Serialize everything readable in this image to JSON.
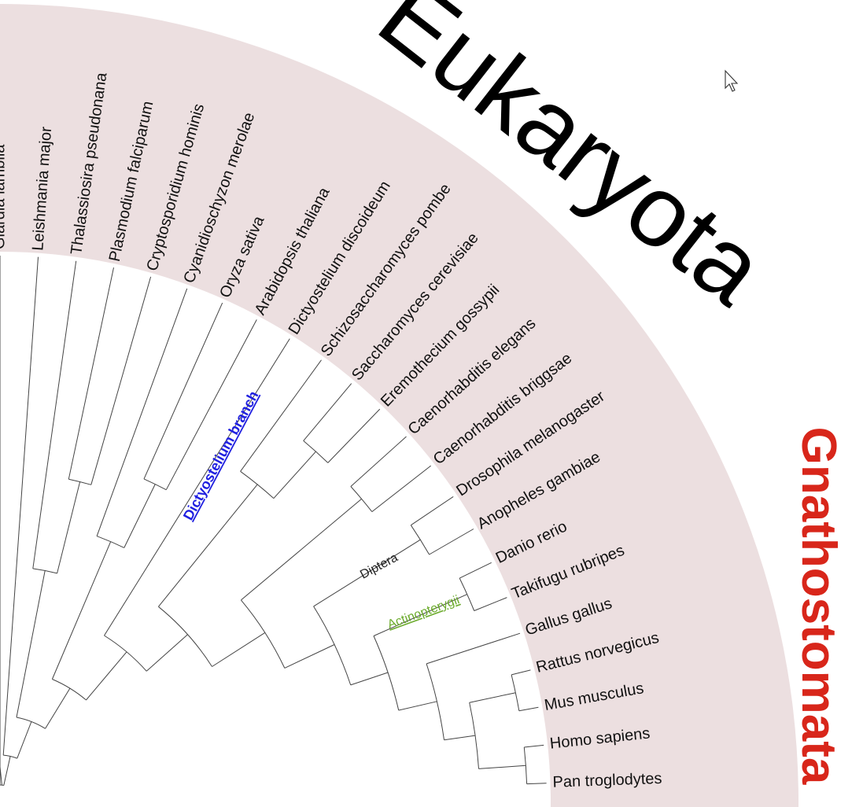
{
  "title": "Eukaryota",
  "clades": {
    "gnathostomata": "Gnathostomata",
    "dictyostelium": "Dictyostelium branch",
    "diptera": "Diptera",
    "actinopterygii": "Actinopterygii"
  },
  "colors": {
    "band": "#ecdfe0",
    "title": "#000000",
    "gnathostomata": "#d8261a",
    "dictyostelium": "#1f1fe0",
    "diptera": "#222222",
    "actinopterygii": "#6aaa2a",
    "branch": "#444444"
  },
  "species": [
    "Giardia lamblia",
    "Leishmania major",
    "Thalassiosira pseudonana",
    "Plasmodium falciparum",
    "Cryptosporidium hominis",
    "Cyanidioschyzon merolae",
    "Oryza sativa",
    "Arabidopsis thaliana",
    "Dictyostelium discoideum",
    "Schizosaccharomyces pombe",
    "Saccharomyces cerevisiae",
    "Eremothecium gossypii",
    "Caenorhabditis elegans",
    "Caenorhabditis briggsae",
    "Drosophila melanogaster",
    "Anopheles gambiae",
    "Danio rerio",
    "Takifugu rubripes",
    "Gallus gallus",
    "Rattus norvegicus",
    "Mus musculus",
    "Homo sapiens",
    "Pan troglodytes"
  ],
  "icons": {
    "cursor": "mouse-pointer-icon"
  }
}
